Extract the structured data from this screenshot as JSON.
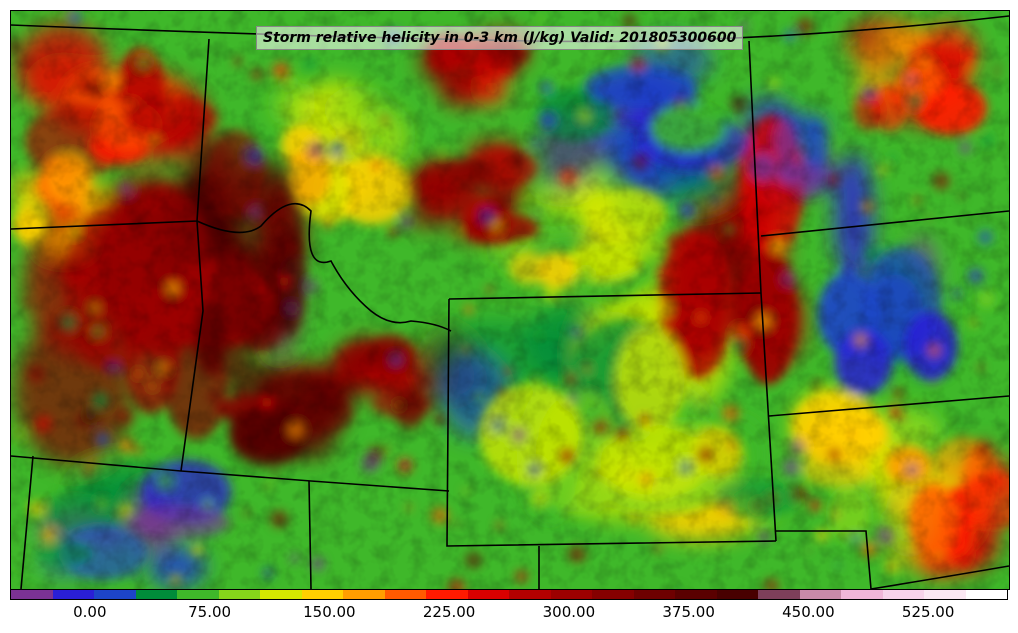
{
  "title": "Storm relative helicity in 0-3 km (J/kg) Valid: 201805300600",
  "colorbar": {
    "colors": [
      "#7b3294",
      "#2a1fd6",
      "#1d44c8",
      "#008c3a",
      "#3fb82a",
      "#86d61a",
      "#d5e800",
      "#ffd000",
      "#ff9e00",
      "#ff5a00",
      "#ff1a00",
      "#d90000",
      "#b30000",
      "#9c0000",
      "#850000",
      "#6e0000",
      "#5a0000",
      "#480000",
      "#7d3f5a",
      "#c88aa8",
      "#f0b6d8",
      "#f7d3ea",
      "#fbe8f3",
      "#ffffff"
    ],
    "ticks": [
      {
        "label": "0.00",
        "value": 0
      },
      {
        "label": "75.00",
        "value": 75
      },
      {
        "label": "150.00",
        "value": 150
      },
      {
        "label": "225.00",
        "value": 225
      },
      {
        "label": "300.00",
        "value": 300
      },
      {
        "label": "375.00",
        "value": 375
      },
      {
        "label": "450.00",
        "value": 450
      },
      {
        "label": "525.00",
        "value": 525
      }
    ],
    "range": [
      -50,
      575
    ]
  }
}
